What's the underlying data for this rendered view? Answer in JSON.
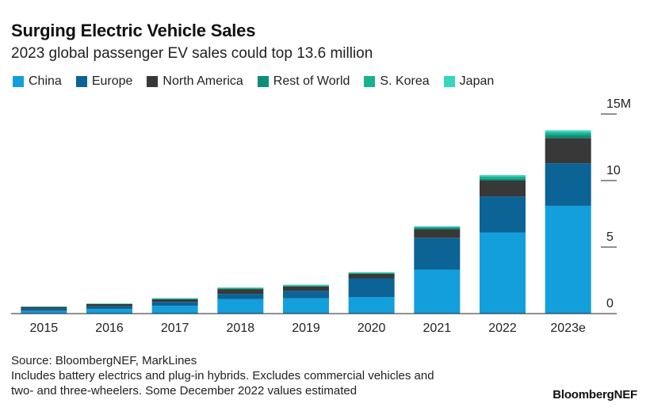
{
  "header": {
    "title": "Surging Electric Vehicle Sales",
    "subtitle": "2023 global passenger EV sales could top 13.6 million"
  },
  "footer": {
    "source": "Source: BloombergNEF, MarkLines",
    "note_line1": "Includes battery electrics and plug-in hybrids. Excludes commercial vehicles and",
    "note_line2": "two- and three-wheelers. Some December 2022 values estimated",
    "brand": "BloombergNEF"
  },
  "colors": {
    "China": "#139fdb",
    "Europe": "#0b6396",
    "North America": "#383838",
    "Rest of World": "#0f8c7a",
    "S. Korea": "#16b38f",
    "Japan": "#34d6bd"
  },
  "chart_data": {
    "type": "bar",
    "stacked": true,
    "categories": [
      "2015",
      "2016",
      "2017",
      "2018",
      "2019",
      "2020",
      "2021",
      "2022",
      "2023e"
    ],
    "series": [
      {
        "name": "China",
        "values": [
          0.2,
          0.35,
          0.58,
          1.1,
          1.15,
          1.25,
          3.3,
          6.1,
          8.1
        ]
      },
      {
        "name": "Europe",
        "values": [
          0.18,
          0.21,
          0.3,
          0.38,
          0.56,
          1.4,
          2.4,
          2.7,
          3.2
        ]
      },
      {
        "name": "North America",
        "values": [
          0.12,
          0.16,
          0.2,
          0.36,
          0.33,
          0.33,
          0.65,
          1.2,
          1.9
        ]
      },
      {
        "name": "Rest of World",
        "values": [
          0.01,
          0.01,
          0.02,
          0.03,
          0.04,
          0.05,
          0.08,
          0.16,
          0.22
        ]
      },
      {
        "name": "S. Korea",
        "values": [
          0.01,
          0.01,
          0.02,
          0.05,
          0.05,
          0.05,
          0.1,
          0.15,
          0.2
        ]
      },
      {
        "name": "Japan",
        "values": [
          0.02,
          0.02,
          0.05,
          0.05,
          0.04,
          0.03,
          0.03,
          0.1,
          0.15
        ]
      }
    ],
    "ylim": [
      0,
      15
    ],
    "yticks": [
      {
        "value": 0,
        "label": "0"
      },
      {
        "value": 5,
        "label": "5"
      },
      {
        "value": 10,
        "label": "10"
      },
      {
        "value": 15,
        "label": "15M"
      }
    ],
    "legend_position": "top-left",
    "grid": false
  }
}
